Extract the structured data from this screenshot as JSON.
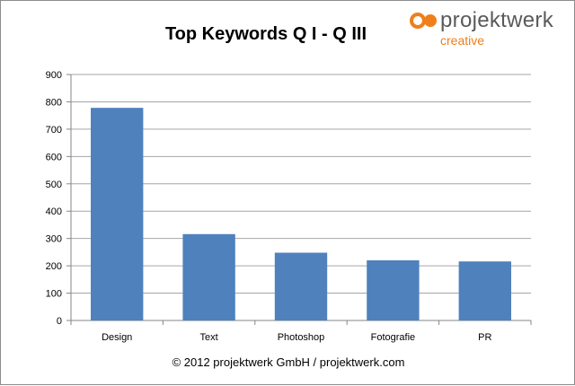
{
  "chart_data": {
    "type": "bar",
    "title": "Top Keywords Q I - Q III",
    "categories": [
      "Design",
      "Text",
      "Photoshop",
      "Fotografie",
      "PR"
    ],
    "values": [
      778,
      316,
      248,
      220,
      216
    ],
    "ylim": [
      0,
      900
    ],
    "yticks": [
      0,
      100,
      200,
      300,
      400,
      500,
      600,
      700,
      800,
      900
    ],
    "xlabel": "",
    "ylabel": "",
    "grid": true,
    "bar_color": "#4f81bd"
  },
  "logo": {
    "name": "projektwerk",
    "tagline": "creative",
    "accent_color": "#ef7f1a"
  },
  "footer": {
    "copyright": "© 2012 projektwerk GmbH / projektwerk.com"
  }
}
